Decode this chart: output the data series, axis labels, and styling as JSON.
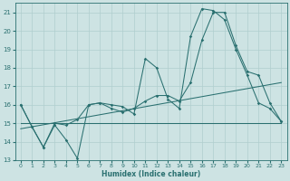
{
  "xlabel": "Humidex (Indice chaleur)",
  "xlim": [
    -0.5,
    23.5
  ],
  "ylim": [
    13,
    21.5
  ],
  "yticks": [
    13,
    14,
    15,
    16,
    17,
    18,
    19,
    20,
    21
  ],
  "xticks": [
    0,
    1,
    2,
    3,
    4,
    5,
    6,
    7,
    8,
    9,
    10,
    11,
    12,
    13,
    14,
    15,
    16,
    17,
    18,
    19,
    20,
    21,
    22,
    23
  ],
  "bg_color": "#cde3e3",
  "line_color": "#2a7070",
  "grid_color": "#b0cece",
  "line1_x": [
    0,
    1,
    2,
    3,
    4,
    5,
    6,
    7,
    8,
    9,
    10,
    11,
    12,
    13,
    14,
    15,
    16,
    17,
    18,
    19,
    20,
    21,
    22,
    23
  ],
  "line1_y": [
    16.0,
    14.8,
    13.7,
    14.9,
    14.1,
    13.1,
    16.0,
    16.1,
    16.0,
    15.9,
    15.5,
    18.5,
    18.0,
    16.3,
    15.8,
    19.7,
    21.2,
    21.1,
    20.6,
    19.0,
    17.6,
    16.1,
    15.8,
    15.1
  ],
  "line2_x": [
    0,
    1,
    2,
    3,
    4,
    5,
    6,
    7,
    8,
    9,
    10,
    11,
    12,
    13,
    14,
    15,
    16,
    17,
    18,
    19,
    20,
    21,
    22,
    23
  ],
  "line2_y": [
    16.0,
    14.8,
    13.7,
    15.0,
    14.9,
    15.2,
    16.0,
    16.1,
    15.8,
    15.6,
    15.8,
    16.2,
    16.5,
    16.5,
    16.2,
    17.2,
    19.5,
    21.0,
    21.0,
    19.2,
    17.8,
    17.6,
    16.1,
    15.1
  ],
  "line3_x": [
    0,
    23
  ],
  "line3_y": [
    15.0,
    15.0
  ],
  "line4_x": [
    0,
    23
  ],
  "line4_y": [
    14.7,
    17.2
  ]
}
